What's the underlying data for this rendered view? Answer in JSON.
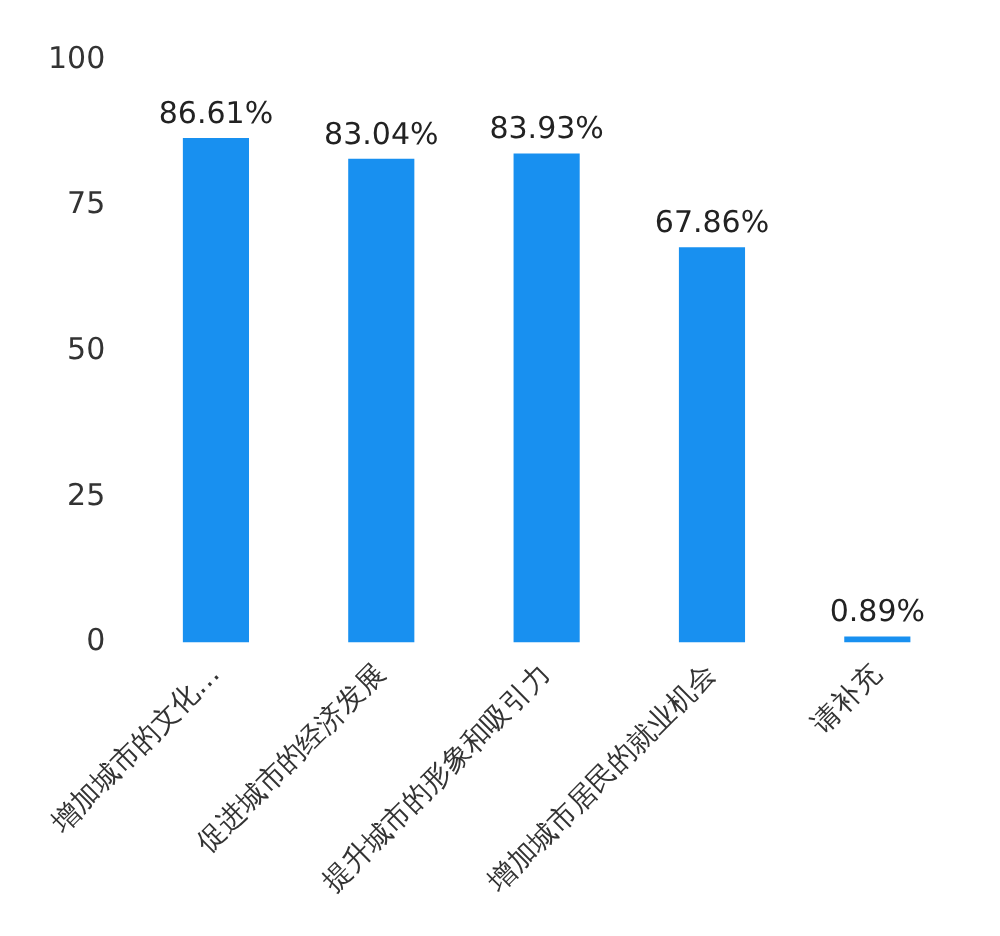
{
  "chart_data": {
    "type": "bar",
    "categories": [
      "增加城市的文化…",
      "促进城市的经济发展",
      "提升城市的形象和吸引力",
      "增加城市居民的就业机会",
      "请补充"
    ],
    "values": [
      86.61,
      83.04,
      83.93,
      67.86,
      0.89
    ],
    "color": "#1890f0",
    "value_labels": [
      "86.61%",
      "83.04%",
      "83.93%",
      "67.86%",
      "0.89%"
    ],
    "ylim": [
      0,
      100
    ],
    "yticks": [
      0,
      25,
      50,
      75,
      100
    ],
    "grid": false,
    "legend": false
  }
}
